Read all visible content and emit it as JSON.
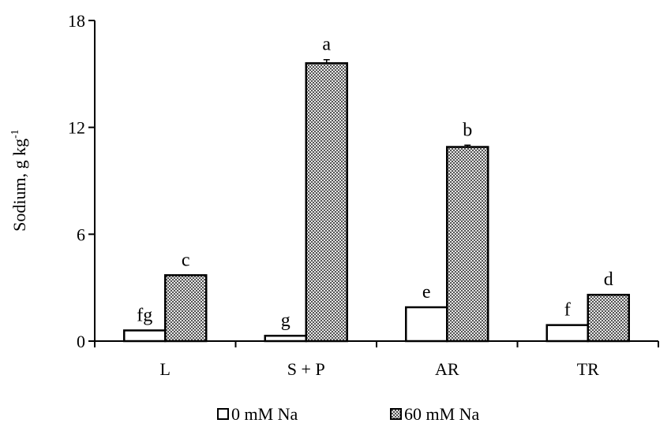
{
  "chart_data": {
    "type": "bar",
    "categories": [
      "L",
      "S + P",
      "AR",
      "TR"
    ],
    "series": [
      {
        "name": "0 mM Na",
        "values": [
          0.6,
          0.3,
          1.9,
          0.9
        ],
        "errors": [
          0,
          0,
          0,
          0
        ],
        "letters": [
          "fg",
          "g",
          "e",
          "f"
        ],
        "fill": "#ffffff"
      },
      {
        "name": "60 mM Na",
        "values": [
          3.7,
          15.6,
          10.9,
          2.6
        ],
        "errors": [
          0,
          0.2,
          0.1,
          0
        ],
        "letters": [
          "c",
          "a",
          "b",
          "d"
        ],
        "fill": "#9a9a9a"
      }
    ],
    "ylabel": "Sodium, g kg",
    "ylabel_sup": "-1",
    "ylim": [
      0,
      18
    ],
    "yticks": [
      0,
      6,
      12,
      18
    ],
    "grid": false,
    "legend_position": "bottom"
  }
}
